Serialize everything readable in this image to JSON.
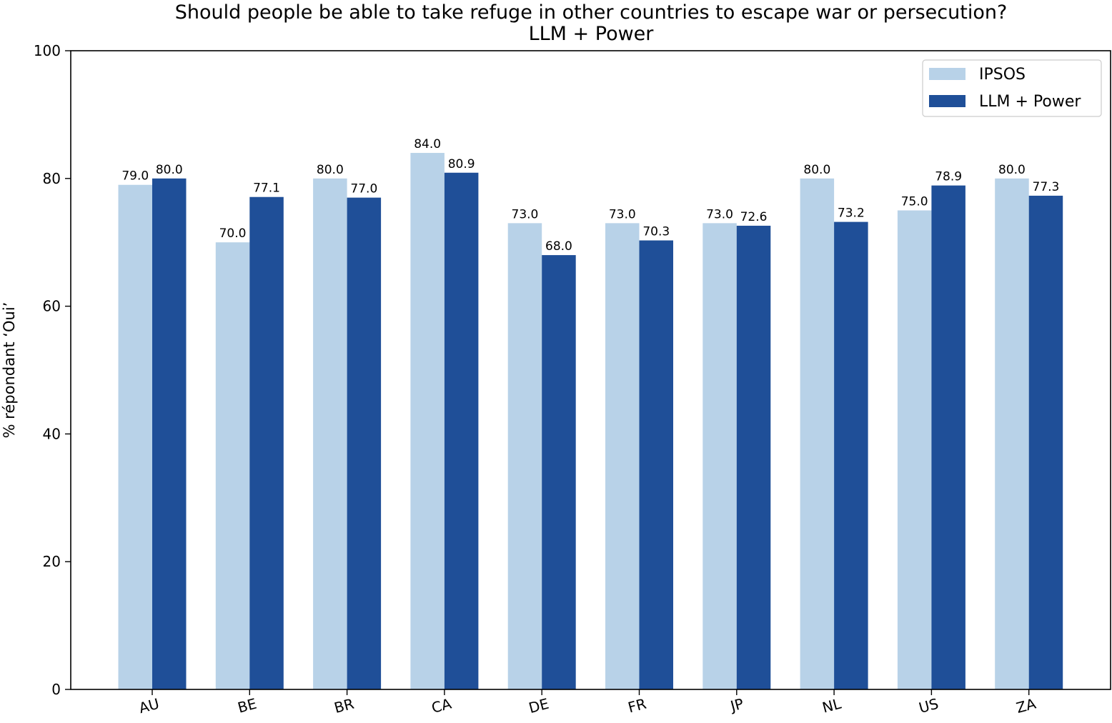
{
  "chart_data": {
    "type": "bar",
    "title": "Should people be able to take refuge in other countries to escape war or persecution?",
    "subtitle": "LLM + Power",
    "xlabel": "",
    "ylabel": "% répondant ‘Oui’",
    "ylim": [
      0,
      100
    ],
    "yticks": [
      "0",
      "20",
      "40",
      "60",
      "80",
      "100"
    ],
    "categories": [
      "AU",
      "BE",
      "BR",
      "CA",
      "DE",
      "FR",
      "JP",
      "NL",
      "US",
      "ZA"
    ],
    "series": [
      {
        "name": "IPSOS",
        "color": "#b8d2e8",
        "values": [
          79.0,
          70.0,
          80.0,
          84.0,
          73.0,
          73.0,
          73.0,
          80.0,
          75.0,
          80.0
        ],
        "labels": [
          "79.0",
          "70.0",
          "80.0",
          "84.0",
          "73.0",
          "73.0",
          "73.0",
          "80.0",
          "75.0",
          "80.0"
        ]
      },
      {
        "name": "LLM + Power",
        "color": "#1f4f98",
        "values": [
          80.0,
          77.1,
          77.0,
          80.9,
          68.0,
          70.3,
          72.6,
          73.2,
          78.9,
          77.3
        ],
        "labels": [
          "80.0",
          "77.1",
          "77.0",
          "80.9",
          "68.0",
          "70.3",
          "72.6",
          "73.2",
          "78.9",
          "77.3"
        ]
      }
    ],
    "grid": false,
    "legend_position": "top-right"
  }
}
